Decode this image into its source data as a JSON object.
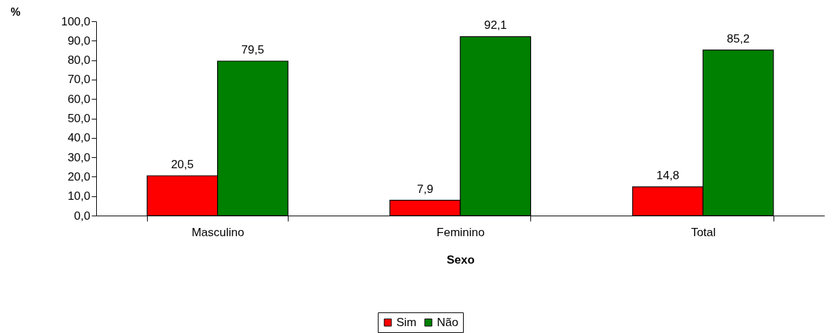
{
  "chart_data": {
    "type": "bar",
    "xlabel": "Sexo",
    "ylabel": "%",
    "categories": [
      "Masculino",
      "Feminino",
      "Total"
    ],
    "series": [
      {
        "name": "Sim",
        "color": "#ff0000",
        "values": [
          20.5,
          7.9,
          14.8
        ],
        "value_labels": [
          "20,5",
          "7,9",
          "14,8"
        ]
      },
      {
        "name": "Não",
        "color": "#008000",
        "values": [
          79.5,
          92.1,
          85.2
        ],
        "value_labels": [
          "79,5",
          "92,1",
          "85,2"
        ]
      }
    ],
    "ylim": [
      0,
      100
    ],
    "yticks": [
      {
        "value": 0,
        "label": "0,0"
      },
      {
        "value": 10,
        "label": "10,0"
      },
      {
        "value": 20,
        "label": "20,0"
      },
      {
        "value": 30,
        "label": "30,0"
      },
      {
        "value": 40,
        "label": "40,0"
      },
      {
        "value": 50,
        "label": "50,0"
      },
      {
        "value": 60,
        "label": "60,0"
      },
      {
        "value": 70,
        "label": "70,0"
      },
      {
        "value": 80,
        "label": "80,0"
      },
      {
        "value": 90,
        "label": "90,0"
      },
      {
        "value": 100,
        "label": "100,0"
      }
    ],
    "grid": false,
    "legend": "bottom"
  }
}
